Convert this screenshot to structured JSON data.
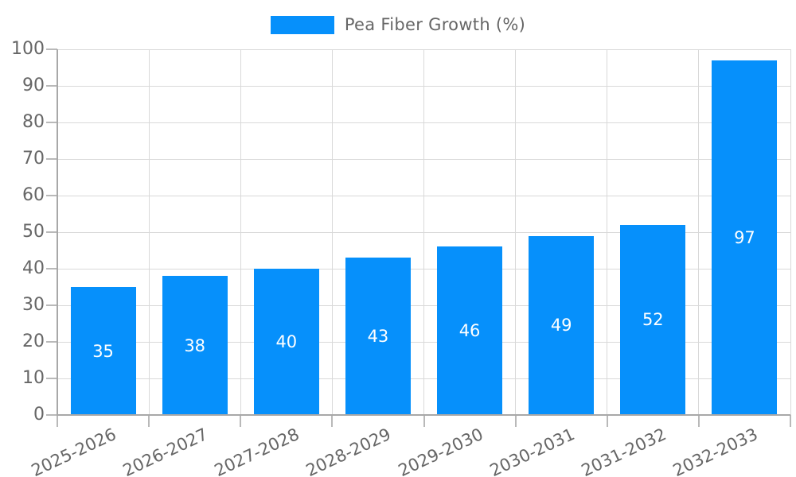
{
  "chart_data": {
    "type": "bar",
    "title": "",
    "series_name": "Pea Fiber Growth (%)",
    "categories": [
      "2025-2026",
      "2026-2027",
      "2027-2028",
      "2028-2029",
      "2029-2030",
      "2030-2031",
      "2031-2032",
      "2032-2033"
    ],
    "values": [
      35,
      38,
      40,
      43,
      46,
      49,
      52,
      97
    ],
    "xlabel": "",
    "ylabel": "",
    "ylim": [
      0,
      100
    ],
    "yticks": [
      0,
      10,
      20,
      30,
      40,
      50,
      60,
      70,
      80,
      90,
      100
    ],
    "grid": true,
    "legend_position": "top",
    "value_labels_position": "inside-center",
    "colors": {
      "bar": "#0690fb",
      "value_label": "#ffffff",
      "axis_text": "#666666",
      "gridline": "#d9d9d9",
      "axis_line": "#a8a8a8",
      "tick": "#b9b9b9",
      "background": "#ffffff"
    }
  }
}
